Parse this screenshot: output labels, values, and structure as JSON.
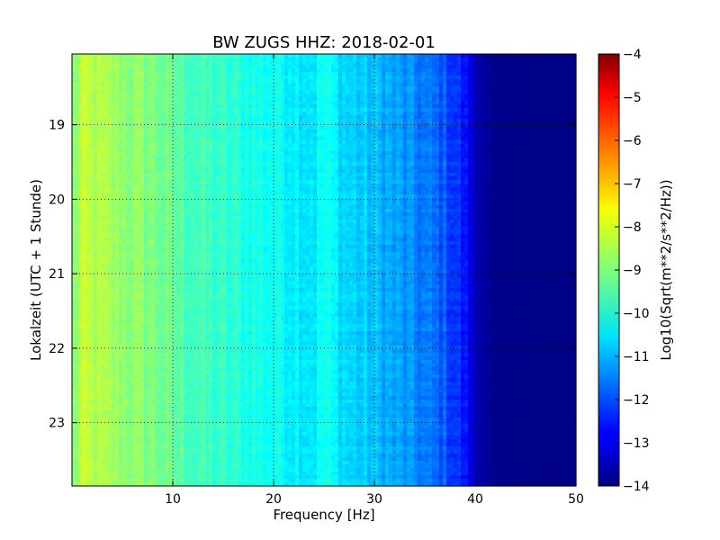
{
  "chart_data": {
    "type": "heatmap",
    "title": "BW ZUGS HHZ: 2018-02-01",
    "xlabel": "Frequency [Hz]",
    "ylabel": "Lokalzeit (UTC + 1 Stunde)",
    "colorbar_label": "Log10(Sqrt(m**2/s**2/Hz))",
    "x": {
      "range": [
        0,
        50
      ],
      "ticks": [
        10,
        20,
        30,
        40,
        50
      ],
      "tick_labels": [
        "10",
        "20",
        "30",
        "40",
        "50"
      ]
    },
    "y": {
      "range": [
        18.05,
        23.85
      ],
      "direction": "top-to-bottom",
      "ticks": [
        19,
        20,
        21,
        22,
        23
      ],
      "tick_labels": [
        "19",
        "20",
        "21",
        "22",
        "23"
      ]
    },
    "colorbar": {
      "range": [
        -14,
        -4
      ],
      "colormap": "jet",
      "ticks": [
        -4,
        -5,
        -6,
        -7,
        -8,
        -9,
        -10,
        -11,
        -12,
        -13,
        -14
      ],
      "tick_labels": [
        "−4",
        "−5",
        "−6",
        "−7",
        "−8",
        "−9",
        "−10",
        "−11",
        "−12",
        "−13",
        "−14"
      ]
    },
    "grid": true,
    "spectrum_profile": {
      "frequency_hz": [
        0,
        1,
        3,
        5,
        8,
        10,
        12,
        15,
        18,
        20,
        22,
        24,
        25,
        27,
        30,
        33,
        35,
        37,
        38.5,
        39.5,
        40.5,
        42,
        50
      ],
      "log10_psd": [
        -9.1,
        -8.4,
        -8.6,
        -8.8,
        -9.0,
        -9.3,
        -9.55,
        -9.8,
        -10.0,
        -10.1,
        -10.3,
        -10.45,
        -10.1,
        -10.6,
        -10.9,
        -11.3,
        -11.6,
        -11.9,
        -12.4,
        -12.9,
        -13.6,
        -13.9,
        -13.95
      ]
    }
  }
}
